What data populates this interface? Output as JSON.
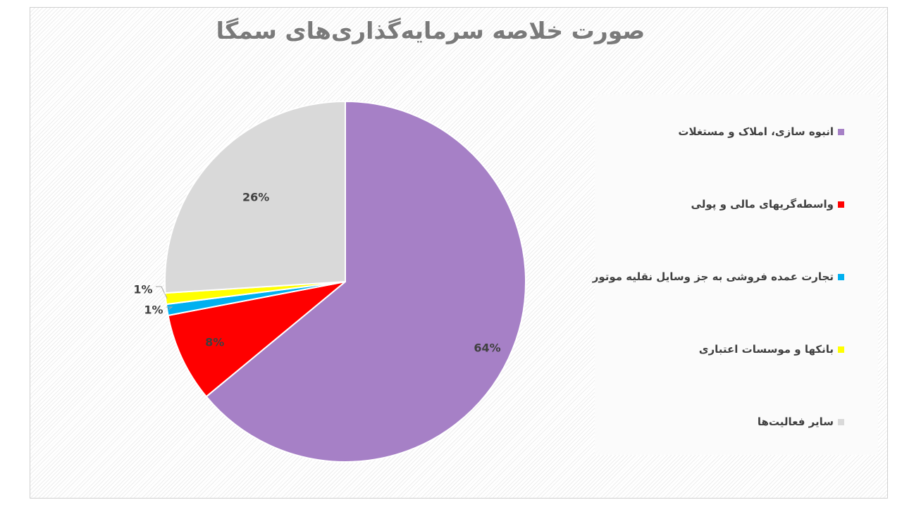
{
  "chart_data": {
    "type": "pie",
    "title": "صورت خلاصه سرمایه‌گذاری‌های سمگا",
    "legend_position": "right",
    "slices": [
      {
        "label": "انبوه سازی، املاک و مستغلات",
        "value": 64,
        "value_label": "64%",
        "color": "#a680c6"
      },
      {
        "label": "واسطه‌گریهای مالی و پولی",
        "value": 8,
        "value_label": "8%",
        "color": "#ff0000"
      },
      {
        "label": "تجارت عمده فروشی به جز وسایل نقلیه موتور",
        "value": 1,
        "value_label": "1%",
        "color": "#00b0f0"
      },
      {
        "label": "بانکها و موسسات اعتباری",
        "value": 1,
        "value_label": "1%",
        "color": "#ffff00"
      },
      {
        "label": "سایر فعالیت‌ها",
        "value": 26,
        "value_label": "26%",
        "color": "#d9d9d9"
      }
    ]
  }
}
